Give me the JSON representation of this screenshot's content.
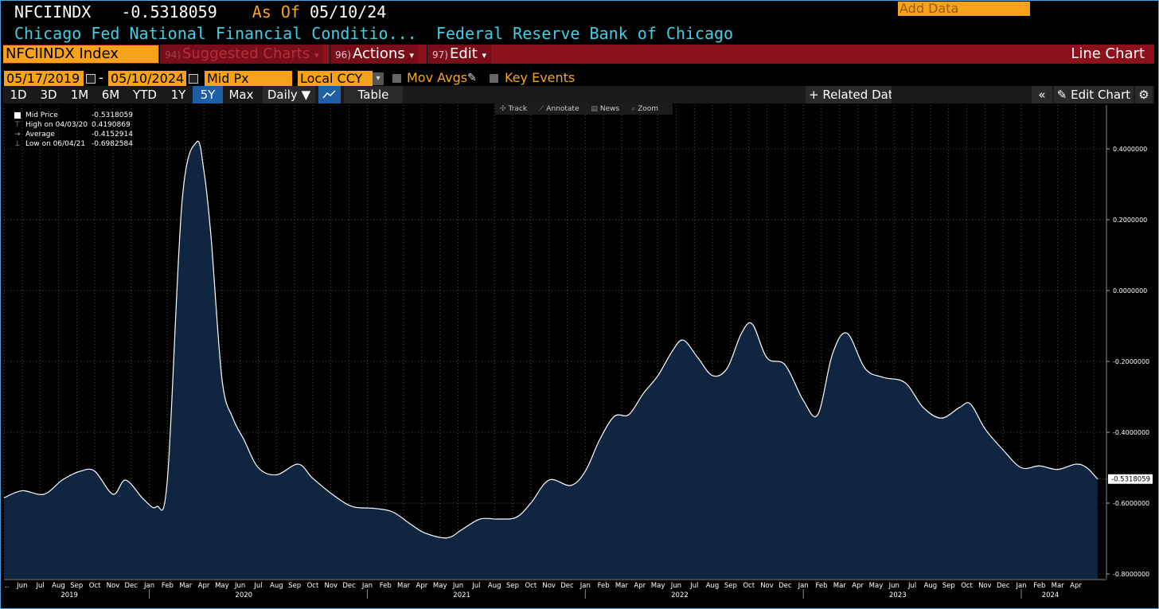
{
  "header": {
    "ticker": "NFCIINDX",
    "last_value": "-0.5318059",
    "as_of_label": "As Of",
    "as_of_date": "05/10/24",
    "description": "Chicago Fed National Financial Conditio...",
    "source": "Federal Reserve Bank of Chicago"
  },
  "menubar": {
    "security": "NFCIINDX Index",
    "suggested_num": "94)",
    "suggested_label": "Suggested Charts",
    "actions_num": "96)",
    "actions_label": "Actions",
    "edit_num": "97)",
    "edit_label": "Edit",
    "chart_type": "Line Chart",
    "dropdown_glyph": "▾"
  },
  "controls": {
    "start_date": "05/17/2019",
    "range_sep": "-",
    "end_date": "05/10/2024",
    "price_field": "Mid Px",
    "currency": "Local CCY",
    "mov_avgs": "Mov Avgs",
    "key_events": "Key Events"
  },
  "periods": [
    "1D",
    "3D",
    "1M",
    "6M",
    "YTD",
    "1Y",
    "5Y",
    "Max"
  ],
  "selected_period": "5Y",
  "toolbar": {
    "frequency": "Daily ▼",
    "table": "Table",
    "related_data": "+ Related Data",
    "add_data_placeholder": "Add Data",
    "collapse": "«",
    "edit_chart": "Edit Chart",
    "gear": "⚙"
  },
  "legend": [
    {
      "label": "Mid Price",
      "value": "-0.5318059"
    },
    {
      "label": "High on 04/03/20",
      "value": "0.4190869"
    },
    {
      "label": "Average",
      "value": "-0.4152914"
    },
    {
      "label": "Low on 06/04/21",
      "value": "-0.6982584"
    }
  ],
  "chart_tools": [
    "Track",
    "Annotate",
    "News",
    "Zoom"
  ],
  "colors": {
    "accent_orange": "#f7a21b",
    "header_cyan": "#3fd0e6",
    "menu_red": "#8c111d",
    "area_fill": "#0f2540",
    "line": "#ffffff",
    "selected_blue": "#1f5fa6"
  },
  "chart_data": {
    "type": "area",
    "title": "NFCIINDX Index",
    "series": [
      {
        "name": "Mid Price",
        "last_label": "-0.5318059"
      }
    ],
    "x": [
      "2019-05",
      "2019-06",
      "2019-07",
      "2019-08",
      "2019-09",
      "2019-10",
      "2019-11",
      "2019-12",
      "2020-01",
      "2020-02",
      "2020-03",
      "2020-04",
      "2020-05",
      "2020-06",
      "2020-07",
      "2020-08",
      "2020-09",
      "2020-10",
      "2020-11",
      "2020-12",
      "2021-01",
      "2021-02",
      "2021-03",
      "2021-04",
      "2021-05",
      "2021-06",
      "2021-07",
      "2021-08",
      "2021-09",
      "2021-10",
      "2021-11",
      "2021-12",
      "2022-01",
      "2022-02",
      "2022-03",
      "2022-04",
      "2022-05",
      "2022-06",
      "2022-07",
      "2022-08",
      "2022-09",
      "2022-10",
      "2022-11",
      "2022-12",
      "2023-01",
      "2023-02",
      "2023-03",
      "2023-04",
      "2023-05",
      "2023-06",
      "2023-07",
      "2023-08",
      "2023-09",
      "2023-10",
      "2023-11",
      "2023-12",
      "2024-01",
      "2024-02",
      "2024-03",
      "2024-04",
      "2024-05"
    ],
    "points": [
      [
        0.0,
        -0.585
      ],
      [
        1.0,
        -0.565
      ],
      [
        2.2,
        -0.575
      ],
      [
        3.2,
        -0.535
      ],
      [
        4.2,
        -0.51
      ],
      [
        5.0,
        -0.51
      ],
      [
        6.0,
        -0.575
      ],
      [
        6.7,
        -0.535
      ],
      [
        7.7,
        -0.59
      ],
      [
        8.4,
        -0.61
      ],
      [
        9.0,
        -0.53
      ],
      [
        9.8,
        0.25
      ],
      [
        10.6,
        0.419
      ],
      [
        11.0,
        0.34
      ],
      [
        11.4,
        0.15
      ],
      [
        12.0,
        -0.25
      ],
      [
        12.6,
        -0.36
      ],
      [
        13.2,
        -0.42
      ],
      [
        14.0,
        -0.5
      ],
      [
        15.0,
        -0.52
      ],
      [
        16.2,
        -0.49
      ],
      [
        17.0,
        -0.53
      ],
      [
        18.2,
        -0.58
      ],
      [
        19.2,
        -0.61
      ],
      [
        20.4,
        -0.615
      ],
      [
        21.4,
        -0.625
      ],
      [
        22.4,
        -0.66
      ],
      [
        23.2,
        -0.685
      ],
      [
        24.4,
        -0.698
      ],
      [
        25.2,
        -0.675
      ],
      [
        26.2,
        -0.645
      ],
      [
        27.2,
        -0.645
      ],
      [
        28.2,
        -0.64
      ],
      [
        29.0,
        -0.6
      ],
      [
        30.0,
        -0.535
      ],
      [
        31.2,
        -0.55
      ],
      [
        32.0,
        -0.51
      ],
      [
        32.8,
        -0.42
      ],
      [
        33.6,
        -0.355
      ],
      [
        34.4,
        -0.35
      ],
      [
        35.2,
        -0.29
      ],
      [
        36.0,
        -0.24
      ],
      [
        36.8,
        -0.17
      ],
      [
        37.4,
        -0.14
      ],
      [
        38.2,
        -0.19
      ],
      [
        39.0,
        -0.24
      ],
      [
        39.8,
        -0.22
      ],
      [
        40.6,
        -0.12
      ],
      [
        41.2,
        -0.095
      ],
      [
        42.0,
        -0.19
      ],
      [
        43.0,
        -0.21
      ],
      [
        44.0,
        -0.31
      ],
      [
        44.8,
        -0.35
      ],
      [
        45.6,
        -0.18
      ],
      [
        46.4,
        -0.12
      ],
      [
        47.4,
        -0.22
      ],
      [
        48.4,
        -0.245
      ],
      [
        49.6,
        -0.26
      ],
      [
        50.6,
        -0.33
      ],
      [
        51.6,
        -0.36
      ],
      [
        52.6,
        -0.33
      ],
      [
        53.2,
        -0.32
      ],
      [
        54.0,
        -0.39
      ],
      [
        55.0,
        -0.45
      ],
      [
        56.0,
        -0.5
      ],
      [
        57.0,
        -0.495
      ],
      [
        58.0,
        -0.505
      ],
      [
        59.0,
        -0.49
      ],
      [
        59.6,
        -0.5
      ],
      [
        60.2,
        -0.532
      ]
    ],
    "y_ticks": [
      "0.4000000",
      "0.2000000",
      "0.0000000",
      "-0.2000000",
      "-0.4000000",
      "-0.6000000",
      "-0.8000000"
    ],
    "ylim": [
      -0.8,
      0.5
    ],
    "x_month_labels": [
      "Jun",
      "Jul",
      "Aug",
      "Sep",
      "Oct",
      "Nov",
      "Dec",
      "Jan",
      "Feb",
      "Mar",
      "Apr",
      "May",
      "Jun",
      "Jul",
      "Aug",
      "Sep",
      "Oct",
      "Nov",
      "Dec",
      "Jan",
      "Feb",
      "Mar",
      "Apr",
      "May",
      "Jun",
      "Jul",
      "Aug",
      "Sep",
      "Oct",
      "Nov",
      "Dec",
      "Jan",
      "Feb",
      "Mar",
      "Apr",
      "May",
      "Jun",
      "Jul",
      "Aug",
      "Sep",
      "Oct",
      "Nov",
      "Dec",
      "Jan",
      "Feb",
      "Mar",
      "Apr",
      "May",
      "Jun",
      "Jul",
      "Aug",
      "Sep",
      "Oct",
      "Nov",
      "Dec",
      "Jan",
      "Feb",
      "Mar",
      "Apr"
    ],
    "x_year_labels": [
      {
        "year": "2019",
        "month_index": 3.6
      },
      {
        "year": "2020",
        "month_index": 13.2
      },
      {
        "year": "2021",
        "month_index": 25.2
      },
      {
        "year": "2022",
        "month_index": 37.2
      },
      {
        "year": "2023",
        "month_index": 49.2
      },
      {
        "year": "2024",
        "month_index": 57.6
      }
    ],
    "grid": true
  }
}
